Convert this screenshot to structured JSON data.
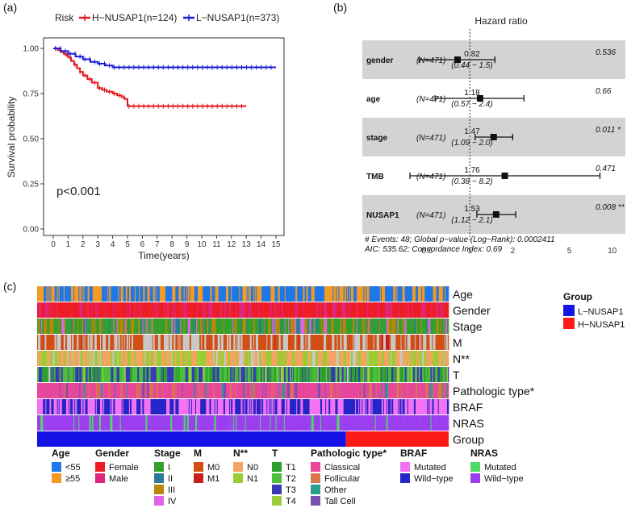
{
  "panel_labels": [
    "(a)",
    "(b)",
    "(c)"
  ],
  "chart_data": [
    {
      "type": "line",
      "panel": "(a)",
      "xlabel": "Time(years)",
      "ylabel": "Survival probability",
      "xlim": [
        0,
        15
      ],
      "ylim": [
        0,
        1
      ],
      "xticks": [
        0,
        1,
        2,
        3,
        4,
        5,
        6,
        7,
        8,
        9,
        10,
        11,
        12,
        13,
        14,
        15
      ],
      "yticks": [
        "0.00",
        "0.25",
        "0.50",
        "0.75",
        "1.00"
      ],
      "legend_title": "Risk",
      "legend_placement": "top",
      "annotation": "p<0.001",
      "grid": false,
      "series": [
        {
          "name": "H−NUSAP1(n=124)",
          "color": "#e41a1c",
          "x": [
            0,
            0.3,
            0.5,
            0.7,
            0.9,
            1.0,
            1.2,
            1.4,
            1.6,
            1.8,
            2.0,
            2.3,
            2.6,
            3.0,
            3.3,
            3.6,
            4.0,
            4.3,
            4.6,
            4.8,
            5.0,
            13.0
          ],
          "y": [
            1.0,
            0.99,
            0.98,
            0.97,
            0.96,
            0.95,
            0.93,
            0.91,
            0.89,
            0.87,
            0.85,
            0.83,
            0.81,
            0.78,
            0.77,
            0.76,
            0.75,
            0.74,
            0.73,
            0.72,
            0.68,
            0.68
          ]
        },
        {
          "name": "L−NUSAP1(n=373)",
          "color": "#1a1adc",
          "x": [
            0,
            0.5,
            1.0,
            1.5,
            2.0,
            2.5,
            3.0,
            3.5,
            4.0,
            15.0
          ],
          "y": [
            1.0,
            0.985,
            0.97,
            0.955,
            0.94,
            0.925,
            0.915,
            0.905,
            0.895,
            0.895
          ]
        }
      ]
    },
    {
      "type": "forest",
      "panel": "(b)",
      "title": "Hazard ratio",
      "xscale": "log",
      "xticks": [
        "0.5",
        "1",
        "2",
        "5",
        "10"
      ],
      "xlim": [
        0.4,
        11
      ],
      "rows": [
        {
          "var": "gender",
          "n": "(N=471)",
          "hr_label": "0.82",
          "ci_label": "(0.44 − 1.5)",
          "hr": 0.82,
          "lo": 0.44,
          "hi": 1.5,
          "p": "0.536",
          "shaded": true
        },
        {
          "var": "age",
          "n": "(N=471)",
          "hr_label": "1.18",
          "ci_label": "(0.57 − 2.4)",
          "hr": 1.18,
          "lo": 0.57,
          "hi": 2.4,
          "p": "0.66",
          "shaded": false
        },
        {
          "var": "stage",
          "n": "(N=471)",
          "hr_label": "1.47",
          "ci_label": "(1.09 − 2.0)",
          "hr": 1.47,
          "lo": 1.09,
          "hi": 2.0,
          "p": "0.011 *",
          "shaded": true
        },
        {
          "var": "TMB",
          "n": "(N=471)",
          "hr_label": "1.76",
          "ci_label": "(0.38 − 8.2)",
          "hr": 1.76,
          "lo": 0.38,
          "hi": 8.2,
          "p": "0.471",
          "shaded": false
        },
        {
          "var": "NUSAP1",
          "n": "(N=471)",
          "hr_label": "1.53",
          "ci_label": "(1.12 − 2.1)",
          "hr": 1.53,
          "lo": 1.12,
          "hi": 2.1,
          "p": "0.008 **",
          "shaded": true
        }
      ],
      "footnote1": "# Events: 48; Global p−value (Log−Rank): 0.0002411",
      "footnote2": "AIC: 535.62; Concordance Index: 0.69"
    },
    {
      "type": "heatmap",
      "panel": "(c)",
      "tracks": [
        "Age",
        "Gender",
        "Stage",
        "M",
        "N**",
        "T",
        "Pathologic type*",
        "BRAF",
        "NRAS",
        "Group"
      ],
      "group_legend": {
        "title": "Group",
        "items": [
          {
            "label": "L−NUSAP1",
            "color": "#1414e6"
          },
          {
            "label": "H−NUSAP1",
            "color": "#ff1a1a"
          }
        ]
      },
      "legends": [
        {
          "title": "Age",
          "items": [
            {
              "label": "<55",
              "color": "#1f77e8"
            },
            {
              "label": "≥55",
              "color": "#f49a22"
            }
          ]
        },
        {
          "title": "Gender",
          "items": [
            {
              "label": "Female",
              "color": "#ee1c25"
            },
            {
              "label": "Male",
              "color": "#e0267c"
            }
          ]
        },
        {
          "title": "Stage",
          "items": [
            {
              "label": "I",
              "color": "#33a02c"
            },
            {
              "label": "II",
              "color": "#2a7a99"
            },
            {
              "label": "III",
              "color": "#b8860b"
            },
            {
              "label": "IV",
              "color": "#e062e6"
            }
          ]
        },
        {
          "title": "M",
          "items": [
            {
              "label": "M0",
              "color": "#d24e12"
            },
            {
              "label": "M1",
              "color": "#c81e1e"
            }
          ]
        },
        {
          "title": "N**",
          "items": [
            {
              "label": "N0",
              "color": "#f4a460"
            },
            {
              "label": "N1",
              "color": "#9acd32"
            }
          ]
        },
        {
          "title": "T",
          "items": [
            {
              "label": "T1",
              "color": "#2ca02c"
            },
            {
              "label": "T2",
              "color": "#4cbe3c"
            },
            {
              "label": "T3",
              "color": "#3838b8"
            },
            {
              "label": "T4",
              "color": "#9ecb3c"
            }
          ]
        },
        {
          "title": "Pathologic type*",
          "items": [
            {
              "label": "Classical",
              "color": "#e6479a"
            },
            {
              "label": "Follicular",
              "color": "#d9764a"
            },
            {
              "label": "Other",
              "color": "#2a9d8f"
            },
            {
              "label": "Tall Cell",
              "color": "#7b4fb0"
            }
          ]
        },
        {
          "title": "BRAF",
          "items": [
            {
              "label": "Mutated",
              "color": "#f472f2"
            },
            {
              "label": "Wild−type",
              "color": "#2424c8"
            }
          ]
        },
        {
          "title": "NRAS",
          "items": [
            {
              "label": "Mutated",
              "color": "#4cd964"
            },
            {
              "label": "Wild−type",
              "color": "#9b3ef0"
            }
          ]
        }
      ]
    }
  ]
}
